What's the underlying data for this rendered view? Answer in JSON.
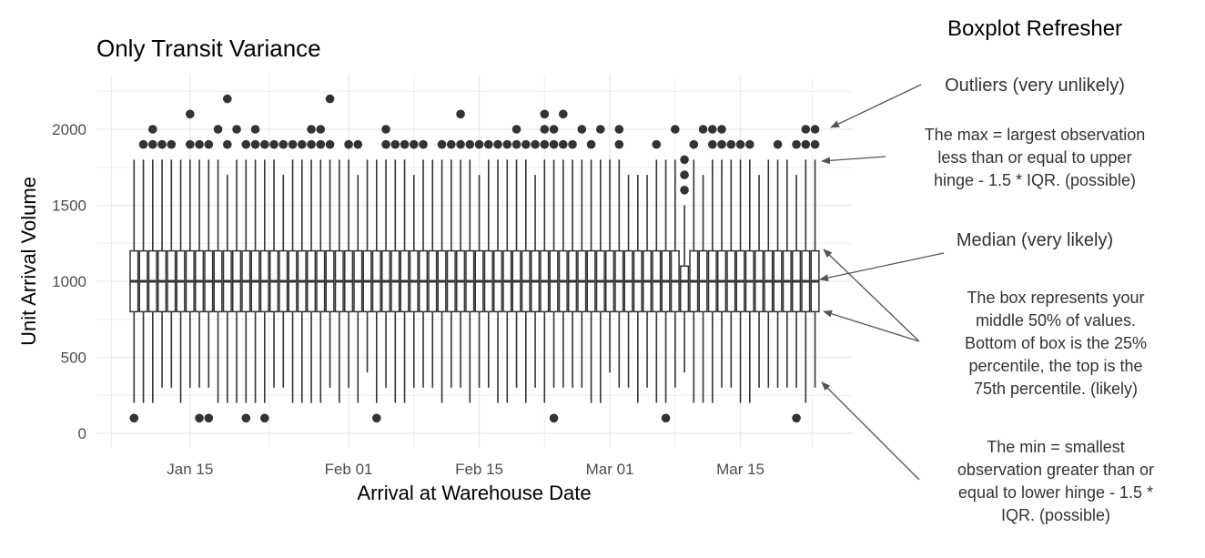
{
  "annotations": {
    "heading": "Boxplot Refresher",
    "outliers": "Outliers (very unlikely)",
    "max": [
      "The max = largest observation",
      "less than or equal to upper",
      "hinge - 1.5 * IQR. (possible)"
    ],
    "median": "Median (very likely)",
    "box": [
      "The box represents your",
      "middle 50% of values.",
      "Bottom of box is the 25%",
      "percentile, the top is the",
      "75th percentile. (likely)"
    ],
    "min": [
      "The min = smallest",
      "observation greater than or",
      "equal to lower hinge - 1.5 *",
      "IQR. (possible)"
    ]
  },
  "chart_data": {
    "type": "boxplot",
    "title": "Only Transit Variance",
    "xlabel": "Arrival at Warehouse Date",
    "ylabel": "Unit Arrival Volume",
    "xticks": [
      "Jan 15",
      "Feb 01",
      "Feb 15",
      "Mar 01",
      "Mar 15"
    ],
    "yticks": [
      0,
      500,
      1000,
      1500,
      2000
    ],
    "ylim": [
      -50,
      2300
    ],
    "xlim": [
      "Jan 07",
      "Mar 29"
    ],
    "grid": true,
    "colors": {
      "box": "#333333",
      "grid": "#ebebeb",
      "arrow": "#555555"
    },
    "boxes": [
      {
        "date": "Jan 09",
        "lower": 200,
        "q1": 800,
        "median": 1000,
        "q3": 1200,
        "upper": 1800,
        "outliers": [
          100
        ]
      },
      {
        "date": "Jan 10",
        "lower": 200,
        "q1": 800,
        "median": 1000,
        "q3": 1200,
        "upper": 1800,
        "outliers": [
          1900
        ]
      },
      {
        "date": "Jan 11",
        "lower": 200,
        "q1": 800,
        "median": 1000,
        "q3": 1200,
        "upper": 1800,
        "outliers": [
          1900,
          2000
        ]
      },
      {
        "date": "Jan 12",
        "lower": 300,
        "q1": 800,
        "median": 1000,
        "q3": 1200,
        "upper": 1800,
        "outliers": [
          1900
        ]
      },
      {
        "date": "Jan 13",
        "lower": 300,
        "q1": 800,
        "median": 1000,
        "q3": 1200,
        "upper": 1800,
        "outliers": [
          1900
        ]
      },
      {
        "date": "Jan 14",
        "lower": 200,
        "q1": 800,
        "median": 1000,
        "q3": 1200,
        "upper": 1800,
        "outliers": []
      },
      {
        "date": "Jan 15",
        "lower": 300,
        "q1": 800,
        "median": 1000,
        "q3": 1200,
        "upper": 1800,
        "outliers": [
          1900,
          2100
        ]
      },
      {
        "date": "Jan 16",
        "lower": 300,
        "q1": 800,
        "median": 1000,
        "q3": 1200,
        "upper": 1800,
        "outliers": [
          1900,
          100
        ]
      },
      {
        "date": "Jan 17",
        "lower": 300,
        "q1": 800,
        "median": 1000,
        "q3": 1200,
        "upper": 1800,
        "outliers": [
          1900,
          100
        ]
      },
      {
        "date": "Jan 18",
        "lower": 200,
        "q1": 800,
        "median": 1000,
        "q3": 1200,
        "upper": 1800,
        "outliers": [
          2000
        ]
      },
      {
        "date": "Jan 19",
        "lower": 200,
        "q1": 800,
        "median": 1000,
        "q3": 1200,
        "upper": 1700,
        "outliers": [
          1900,
          2200
        ]
      },
      {
        "date": "Jan 20",
        "lower": 200,
        "q1": 800,
        "median": 1000,
        "q3": 1200,
        "upper": 1800,
        "outliers": [
          2000
        ]
      },
      {
        "date": "Jan 21",
        "lower": 200,
        "q1": 800,
        "median": 1000,
        "q3": 1200,
        "upper": 1800,
        "outliers": [
          1900,
          100
        ]
      },
      {
        "date": "Jan 22",
        "lower": 200,
        "q1": 800,
        "median": 1000,
        "q3": 1200,
        "upper": 1800,
        "outliers": [
          1900,
          2000
        ]
      },
      {
        "date": "Jan 23",
        "lower": 200,
        "q1": 800,
        "median": 1000,
        "q3": 1200,
        "upper": 1800,
        "outliers": [
          1900,
          100
        ]
      },
      {
        "date": "Jan 24",
        "lower": 300,
        "q1": 800,
        "median": 1000,
        "q3": 1200,
        "upper": 1800,
        "outliers": [
          1900
        ]
      },
      {
        "date": "Jan 25",
        "lower": 300,
        "q1": 800,
        "median": 1000,
        "q3": 1200,
        "upper": 1700,
        "outliers": [
          1900
        ]
      },
      {
        "date": "Jan 26",
        "lower": 200,
        "q1": 800,
        "median": 1000,
        "q3": 1200,
        "upper": 1800,
        "outliers": [
          1900
        ]
      },
      {
        "date": "Jan 27",
        "lower": 200,
        "q1": 800,
        "median": 1000,
        "q3": 1200,
        "upper": 1800,
        "outliers": [
          1900
        ]
      },
      {
        "date": "Jan 28",
        "lower": 200,
        "q1": 800,
        "median": 1000,
        "q3": 1200,
        "upper": 1800,
        "outliers": [
          1900,
          2000
        ]
      },
      {
        "date": "Jan 29",
        "lower": 200,
        "q1": 800,
        "median": 1000,
        "q3": 1200,
        "upper": 1800,
        "outliers": [
          1900,
          2000
        ]
      },
      {
        "date": "Jan 30",
        "lower": 300,
        "q1": 800,
        "median": 1000,
        "q3": 1200,
        "upper": 1800,
        "outliers": [
          1900,
          2200
        ]
      },
      {
        "date": "Jan 31",
        "lower": 200,
        "q1": 800,
        "median": 1000,
        "q3": 1200,
        "upper": 1800,
        "outliers": []
      },
      {
        "date": "Feb 01",
        "lower": 300,
        "q1": 800,
        "median": 1000,
        "q3": 1200,
        "upper": 1800,
        "outliers": [
          1900
        ]
      },
      {
        "date": "Feb 02",
        "lower": 200,
        "q1": 800,
        "median": 1000,
        "q3": 1200,
        "upper": 1700,
        "outliers": [
          1900
        ]
      },
      {
        "date": "Feb 03",
        "lower": 400,
        "q1": 800,
        "median": 1000,
        "q3": 1200,
        "upper": 1800,
        "outliers": []
      },
      {
        "date": "Feb 04",
        "lower": 200,
        "q1": 800,
        "median": 1000,
        "q3": 1200,
        "upper": 1800,
        "outliers": [
          100
        ]
      },
      {
        "date": "Feb 05",
        "lower": 300,
        "q1": 800,
        "median": 1000,
        "q3": 1200,
        "upper": 1800,
        "outliers": [
          1900,
          2000
        ]
      },
      {
        "date": "Feb 06",
        "lower": 200,
        "q1": 800,
        "median": 1000,
        "q3": 1200,
        "upper": 1800,
        "outliers": [
          1900
        ]
      },
      {
        "date": "Feb 07",
        "lower": 200,
        "q1": 800,
        "median": 1000,
        "q3": 1200,
        "upper": 1800,
        "outliers": [
          1900
        ]
      },
      {
        "date": "Feb 08",
        "lower": 300,
        "q1": 800,
        "median": 1000,
        "q3": 1200,
        "upper": 1700,
        "outliers": [
          1900
        ]
      },
      {
        "date": "Feb 09",
        "lower": 300,
        "q1": 800,
        "median": 1000,
        "q3": 1200,
        "upper": 1800,
        "outliers": [
          1900
        ]
      },
      {
        "date": "Feb 10",
        "lower": 300,
        "q1": 800,
        "median": 1000,
        "q3": 1200,
        "upper": 1800,
        "outliers": []
      },
      {
        "date": "Feb 11",
        "lower": 200,
        "q1": 800,
        "median": 1000,
        "q3": 1200,
        "upper": 1800,
        "outliers": [
          1900
        ]
      },
      {
        "date": "Feb 12",
        "lower": 300,
        "q1": 800,
        "median": 1000,
        "q3": 1200,
        "upper": 1800,
        "outliers": [
          1900
        ]
      },
      {
        "date": "Feb 13",
        "lower": 300,
        "q1": 800,
        "median": 1000,
        "q3": 1200,
        "upper": 1800,
        "outliers": [
          1900,
          2100
        ]
      },
      {
        "date": "Feb 14",
        "lower": 200,
        "q1": 800,
        "median": 1000,
        "q3": 1200,
        "upper": 1800,
        "outliers": [
          1900
        ]
      },
      {
        "date": "Feb 15",
        "lower": 300,
        "q1": 800,
        "median": 1000,
        "q3": 1200,
        "upper": 1700,
        "outliers": [
          1900
        ]
      },
      {
        "date": "Feb 16",
        "lower": 300,
        "q1": 800,
        "median": 1000,
        "q3": 1200,
        "upper": 1800,
        "outliers": [
          1900
        ]
      },
      {
        "date": "Feb 17",
        "lower": 200,
        "q1": 800,
        "median": 1000,
        "q3": 1200,
        "upper": 1800,
        "outliers": [
          1900
        ]
      },
      {
        "date": "Feb 18",
        "lower": 200,
        "q1": 800,
        "median": 1000,
        "q3": 1200,
        "upper": 1800,
        "outliers": [
          1900
        ]
      },
      {
        "date": "Feb 19",
        "lower": 300,
        "q1": 800,
        "median": 1000,
        "q3": 1200,
        "upper": 1800,
        "outliers": [
          1900,
          2000
        ]
      },
      {
        "date": "Feb 20",
        "lower": 200,
        "q1": 800,
        "median": 1000,
        "q3": 1200,
        "upper": 1800,
        "outliers": [
          1900
        ]
      },
      {
        "date": "Feb 21",
        "lower": 300,
        "q1": 800,
        "median": 1000,
        "q3": 1200,
        "upper": 1700,
        "outliers": [
          1900
        ]
      },
      {
        "date": "Feb 22",
        "lower": 200,
        "q1": 800,
        "median": 1000,
        "q3": 1200,
        "upper": 1800,
        "outliers": [
          1900,
          2000,
          2100
        ]
      },
      {
        "date": "Feb 23",
        "lower": 300,
        "q1": 800,
        "median": 1000,
        "q3": 1200,
        "upper": 1800,
        "outliers": [
          1900,
          2000,
          100
        ]
      },
      {
        "date": "Feb 24",
        "lower": 300,
        "q1": 800,
        "median": 1000,
        "q3": 1200,
        "upper": 1800,
        "outliers": [
          1900,
          2100
        ]
      },
      {
        "date": "Feb 25",
        "lower": 300,
        "q1": 800,
        "median": 1000,
        "q3": 1200,
        "upper": 1800,
        "outliers": [
          1900
        ]
      },
      {
        "date": "Feb 26",
        "lower": 300,
        "q1": 800,
        "median": 1000,
        "q3": 1200,
        "upper": 1800,
        "outliers": [
          2000
        ]
      },
      {
        "date": "Feb 27",
        "lower": 200,
        "q1": 800,
        "median": 1000,
        "q3": 1200,
        "upper": 1800,
        "outliers": [
          1900
        ]
      },
      {
        "date": "Feb 28",
        "lower": 200,
        "q1": 800,
        "median": 1000,
        "q3": 1200,
        "upper": 1800,
        "outliers": [
          2000
        ]
      },
      {
        "date": "Mar 01",
        "lower": 400,
        "q1": 800,
        "median": 1000,
        "q3": 1200,
        "upper": 1800,
        "outliers": []
      },
      {
        "date": "Mar 02",
        "lower": 300,
        "q1": 800,
        "median": 1000,
        "q3": 1200,
        "upper": 1800,
        "outliers": [
          1900,
          2000
        ]
      },
      {
        "date": "Mar 03",
        "lower": 300,
        "q1": 800,
        "median": 1000,
        "q3": 1200,
        "upper": 1700,
        "outliers": []
      },
      {
        "date": "Mar 04",
        "lower": 200,
        "q1": 800,
        "median": 1000,
        "q3": 1200,
        "upper": 1700,
        "outliers": []
      },
      {
        "date": "Mar 05",
        "lower": 300,
        "q1": 800,
        "median": 1000,
        "q3": 1200,
        "upper": 1700,
        "outliers": []
      },
      {
        "date": "Mar 06",
        "lower": 200,
        "q1": 800,
        "median": 1000,
        "q3": 1200,
        "upper": 1800,
        "outliers": [
          1900
        ]
      },
      {
        "date": "Mar 07",
        "lower": 200,
        "q1": 800,
        "median": 1000,
        "q3": 1200,
        "upper": 1800,
        "outliers": [
          100
        ]
      },
      {
        "date": "Mar 08",
        "lower": 300,
        "q1": 800,
        "median": 1000,
        "q3": 1200,
        "upper": 1800,
        "outliers": [
          2000
        ]
      },
      {
        "date": "Mar 09",
        "lower": 400,
        "q1": 800,
        "median": 1000,
        "q3": 1100,
        "upper": 1500,
        "outliers": [
          1600,
          1700,
          1800
        ]
      },
      {
        "date": "Mar 10",
        "lower": 200,
        "q1": 800,
        "median": 1000,
        "q3": 1200,
        "upper": 1800,
        "outliers": [
          1900
        ]
      },
      {
        "date": "Mar 11",
        "lower": 200,
        "q1": 800,
        "median": 1000,
        "q3": 1200,
        "upper": 1700,
        "outliers": [
          2000
        ]
      },
      {
        "date": "Mar 12",
        "lower": 200,
        "q1": 800,
        "median": 1000,
        "q3": 1200,
        "upper": 1800,
        "outliers": [
          1900,
          2000
        ]
      },
      {
        "date": "Mar 13",
        "lower": 300,
        "q1": 800,
        "median": 1000,
        "q3": 1200,
        "upper": 1800,
        "outliers": [
          1900,
          2000
        ]
      },
      {
        "date": "Mar 14",
        "lower": 300,
        "q1": 800,
        "median": 1000,
        "q3": 1200,
        "upper": 1800,
        "outliers": [
          1900
        ]
      },
      {
        "date": "Mar 15",
        "lower": 200,
        "q1": 800,
        "median": 1000,
        "q3": 1200,
        "upper": 1800,
        "outliers": [
          1900
        ]
      },
      {
        "date": "Mar 16",
        "lower": 200,
        "q1": 800,
        "median": 1000,
        "q3": 1200,
        "upper": 1800,
        "outliers": [
          1900
        ]
      },
      {
        "date": "Mar 17",
        "lower": 300,
        "q1": 800,
        "median": 1000,
        "q3": 1200,
        "upper": 1700,
        "outliers": []
      },
      {
        "date": "Mar 18",
        "lower": 300,
        "q1": 800,
        "median": 1000,
        "q3": 1200,
        "upper": 1800,
        "outliers": []
      },
      {
        "date": "Mar 19",
        "lower": 300,
        "q1": 800,
        "median": 1000,
        "q3": 1200,
        "upper": 1800,
        "outliers": [
          1900
        ]
      },
      {
        "date": "Mar 20",
        "lower": 300,
        "q1": 800,
        "median": 1000,
        "q3": 1200,
        "upper": 1800,
        "outliers": []
      },
      {
        "date": "Mar 21",
        "lower": 300,
        "q1": 800,
        "median": 1000,
        "q3": 1200,
        "upper": 1700,
        "outliers": [
          1900,
          100
        ]
      },
      {
        "date": "Mar 22",
        "lower": 200,
        "q1": 800,
        "median": 1000,
        "q3": 1200,
        "upper": 1800,
        "outliers": [
          1900,
          2000
        ]
      },
      {
        "date": "Mar 23",
        "lower": 300,
        "q1": 800,
        "median": 1000,
        "q3": 1200,
        "upper": 1800,
        "outliers": [
          1900,
          2000
        ]
      }
    ]
  }
}
